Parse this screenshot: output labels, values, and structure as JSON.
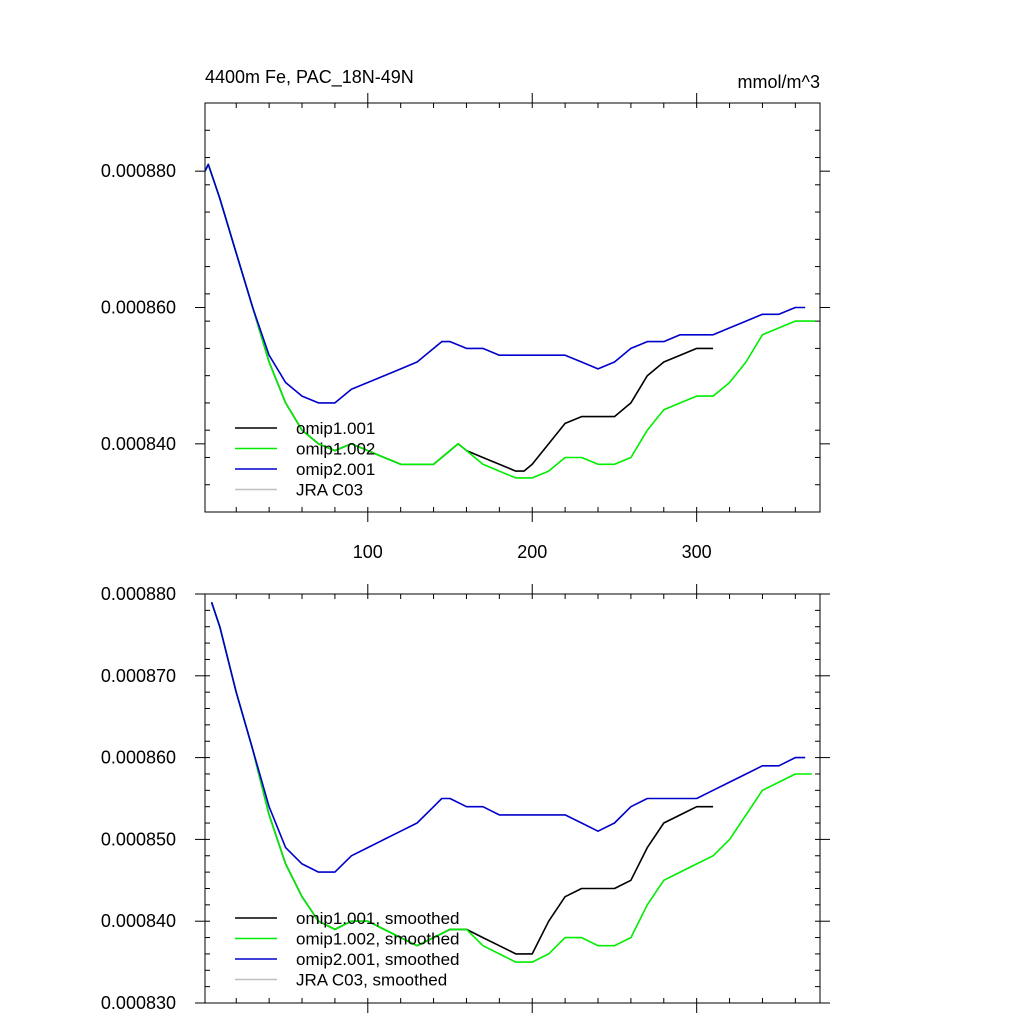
{
  "chart_data": [
    {
      "type": "line",
      "title": "4400m Fe, PAC_18N-49N",
      "units_label": "mmol/m^3",
      "xlabel": "",
      "ylabel": "",
      "xlim": [
        1,
        375
      ],
      "ylim": [
        0.00083,
        0.00089
      ],
      "x_ticks": [
        100,
        200,
        300
      ],
      "x_tick_labels": [
        "100",
        "200",
        "300"
      ],
      "y_ticks": [
        0.00084,
        0.00086,
        0.00088
      ],
      "y_tick_labels": [
        "0.000840",
        "0.000860",
        "0.000880"
      ],
      "legend_position": "bottom-left",
      "series": [
        {
          "name": "omip1.001",
          "color": "#000000",
          "points": [
            [
              1,
              0.00088
            ],
            [
              3,
              0.000881
            ],
            [
              10,
              0.000876
            ],
            [
              20,
              0.000868
            ],
            [
              30,
              0.00086
            ],
            [
              40,
              0.000852
            ],
            [
              50,
              0.000846
            ],
            [
              60,
              0.000842
            ],
            [
              70,
              0.00084
            ],
            [
              80,
              0.000839
            ],
            [
              90,
              0.00084
            ],
            [
              100,
              0.000839
            ],
            [
              110,
              0.000838
            ],
            [
              120,
              0.000837
            ],
            [
              130,
              0.000837
            ],
            [
              140,
              0.000837
            ],
            [
              150,
              0.000839
            ],
            [
              155,
              0.00084
            ],
            [
              160,
              0.000839
            ],
            [
              170,
              0.000838
            ],
            [
              180,
              0.000837
            ],
            [
              190,
              0.000836
            ],
            [
              195,
              0.000836
            ],
            [
              200,
              0.000837
            ],
            [
              210,
              0.00084
            ],
            [
              220,
              0.000843
            ],
            [
              230,
              0.000844
            ],
            [
              240,
              0.000844
            ],
            [
              250,
              0.000844
            ],
            [
              260,
              0.000846
            ],
            [
              270,
              0.00085
            ],
            [
              280,
              0.000852
            ],
            [
              290,
              0.000853
            ],
            [
              300,
              0.000854
            ],
            [
              310,
              0.000854
            ]
          ]
        },
        {
          "name": "omip1.002",
          "color": "#00ee00",
          "points": [
            [
              1,
              0.00088
            ],
            [
              3,
              0.000881
            ],
            [
              10,
              0.000876
            ],
            [
              20,
              0.000868
            ],
            [
              30,
              0.00086
            ],
            [
              40,
              0.000852
            ],
            [
              50,
              0.000846
            ],
            [
              60,
              0.000842
            ],
            [
              70,
              0.00084
            ],
            [
              80,
              0.000839
            ],
            [
              90,
              0.00084
            ],
            [
              100,
              0.000839
            ],
            [
              110,
              0.000838
            ],
            [
              120,
              0.000837
            ],
            [
              130,
              0.000837
            ],
            [
              140,
              0.000837
            ],
            [
              150,
              0.000839
            ],
            [
              155,
              0.00084
            ],
            [
              160,
              0.000839
            ],
            [
              170,
              0.000837
            ],
            [
              180,
              0.000836
            ],
            [
              190,
              0.000835
            ],
            [
              200,
              0.000835
            ],
            [
              210,
              0.000836
            ],
            [
              220,
              0.000838
            ],
            [
              230,
              0.000838
            ],
            [
              240,
              0.000837
            ],
            [
              250,
              0.000837
            ],
            [
              260,
              0.000838
            ],
            [
              270,
              0.000842
            ],
            [
              280,
              0.000845
            ],
            [
              290,
              0.000846
            ],
            [
              300,
              0.000847
            ],
            [
              310,
              0.000847
            ],
            [
              320,
              0.000849
            ],
            [
              330,
              0.000852
            ],
            [
              340,
              0.000856
            ],
            [
              350,
              0.000857
            ],
            [
              360,
              0.000858
            ],
            [
              372,
              0.000858
            ]
          ]
        },
        {
          "name": "omip2.001",
          "color": "#0000cc",
          "points": [
            [
              1,
              0.00088
            ],
            [
              3,
              0.000881
            ],
            [
              10,
              0.000876
            ],
            [
              20,
              0.000868
            ],
            [
              30,
              0.00086
            ],
            [
              40,
              0.000853
            ],
            [
              50,
              0.000849
            ],
            [
              60,
              0.000847
            ],
            [
              70,
              0.000846
            ],
            [
              75,
              0.000846
            ],
            [
              80,
              0.000846
            ],
            [
              90,
              0.000848
            ],
            [
              100,
              0.000849
            ],
            [
              110,
              0.00085
            ],
            [
              120,
              0.000851
            ],
            [
              130,
              0.000852
            ],
            [
              140,
              0.000854
            ],
            [
              145,
              0.000855
            ],
            [
              150,
              0.000855
            ],
            [
              160,
              0.000854
            ],
            [
              170,
              0.000854
            ],
            [
              180,
              0.000853
            ],
            [
              190,
              0.000853
            ],
            [
              200,
              0.000853
            ],
            [
              210,
              0.000853
            ],
            [
              220,
              0.000853
            ],
            [
              230,
              0.000852
            ],
            [
              240,
              0.000851
            ],
            [
              250,
              0.000852
            ],
            [
              260,
              0.000854
            ],
            [
              270,
              0.000855
            ],
            [
              280,
              0.000855
            ],
            [
              290,
              0.000856
            ],
            [
              300,
              0.000856
            ],
            [
              310,
              0.000856
            ],
            [
              320,
              0.000857
            ],
            [
              330,
              0.000858
            ],
            [
              340,
              0.000859
            ],
            [
              350,
              0.000859
            ],
            [
              360,
              0.00086
            ],
            [
              366,
              0.00086
            ]
          ]
        },
        {
          "name": "JRA C03",
          "color": "#c0c0c0",
          "points": []
        }
      ]
    },
    {
      "type": "line",
      "title": "",
      "xlabel": "",
      "ylabel": "",
      "xlim": [
        1,
        375
      ],
      "ylim": [
        0.00083,
        0.00088
      ],
      "x_ticks": [
        100,
        200,
        300
      ],
      "x_tick_labels": [],
      "y_ticks": [
        0.00083,
        0.00084,
        0.00085,
        0.00086,
        0.00087,
        0.00088
      ],
      "y_tick_labels": [
        "0.000830",
        "0.000840",
        "0.000850",
        "0.000860",
        "0.000870",
        "0.000880"
      ],
      "legend_position": "bottom-left",
      "series": [
        {
          "name": "omip1.001, smoothed",
          "color": "#000000",
          "points": [
            [
              5,
              0.000879
            ],
            [
              10,
              0.000876
            ],
            [
              20,
              0.000868
            ],
            [
              30,
              0.000861
            ],
            [
              40,
              0.000853
            ],
            [
              50,
              0.000847
            ],
            [
              60,
              0.000843
            ],
            [
              70,
              0.00084
            ],
            [
              80,
              0.000839
            ],
            [
              90,
              0.00084
            ],
            [
              100,
              0.00084
            ],
            [
              110,
              0.000839
            ],
            [
              120,
              0.000838
            ],
            [
              130,
              0.000837
            ],
            [
              140,
              0.000838
            ],
            [
              150,
              0.000839
            ],
            [
              155,
              0.000839
            ],
            [
              160,
              0.000839
            ],
            [
              170,
              0.000838
            ],
            [
              180,
              0.000837
            ],
            [
              190,
              0.000836
            ],
            [
              195,
              0.000836
            ],
            [
              200,
              0.000836
            ],
            [
              210,
              0.00084
            ],
            [
              220,
              0.000843
            ],
            [
              230,
              0.000844
            ],
            [
              240,
              0.000844
            ],
            [
              250,
              0.000844
            ],
            [
              260,
              0.000845
            ],
            [
              270,
              0.000849
            ],
            [
              280,
              0.000852
            ],
            [
              290,
              0.000853
            ],
            [
              300,
              0.000854
            ],
            [
              310,
              0.000854
            ]
          ]
        },
        {
          "name": "omip1.002, smoothed",
          "color": "#00ee00",
          "points": [
            [
              5,
              0.000879
            ],
            [
              10,
              0.000876
            ],
            [
              20,
              0.000868
            ],
            [
              30,
              0.000861
            ],
            [
              40,
              0.000853
            ],
            [
              50,
              0.000847
            ],
            [
              60,
              0.000843
            ],
            [
              70,
              0.00084
            ],
            [
              80,
              0.000839
            ],
            [
              90,
              0.00084
            ],
            [
              100,
              0.00084
            ],
            [
              110,
              0.000839
            ],
            [
              120,
              0.000838
            ],
            [
              130,
              0.000837
            ],
            [
              140,
              0.000838
            ],
            [
              150,
              0.000839
            ],
            [
              155,
              0.000839
            ],
            [
              160,
              0.000839
            ],
            [
              170,
              0.000837
            ],
            [
              180,
              0.000836
            ],
            [
              190,
              0.000835
            ],
            [
              200,
              0.000835
            ],
            [
              210,
              0.000836
            ],
            [
              220,
              0.000838
            ],
            [
              230,
              0.000838
            ],
            [
              240,
              0.000837
            ],
            [
              250,
              0.000837
            ],
            [
              260,
              0.000838
            ],
            [
              270,
              0.000842
            ],
            [
              280,
              0.000845
            ],
            [
              290,
              0.000846
            ],
            [
              300,
              0.000847
            ],
            [
              310,
              0.000848
            ],
            [
              320,
              0.00085
            ],
            [
              330,
              0.000853
            ],
            [
              340,
              0.000856
            ],
            [
              350,
              0.000857
            ],
            [
              360,
              0.000858
            ],
            [
              370,
              0.000858
            ]
          ]
        },
        {
          "name": "omip2.001, smoothed",
          "color": "#0000cc",
          "points": [
            [
              5,
              0.000879
            ],
            [
              10,
              0.000876
            ],
            [
              20,
              0.000868
            ],
            [
              30,
              0.000861
            ],
            [
              40,
              0.000854
            ],
            [
              50,
              0.000849
            ],
            [
              60,
              0.000847
            ],
            [
              70,
              0.000846
            ],
            [
              75,
              0.000846
            ],
            [
              80,
              0.000846
            ],
            [
              90,
              0.000848
            ],
            [
              100,
              0.000849
            ],
            [
              110,
              0.00085
            ],
            [
              120,
              0.000851
            ],
            [
              130,
              0.000852
            ],
            [
              140,
              0.000854
            ],
            [
              145,
              0.000855
            ],
            [
              150,
              0.000855
            ],
            [
              160,
              0.000854
            ],
            [
              170,
              0.000854
            ],
            [
              180,
              0.000853
            ],
            [
              190,
              0.000853
            ],
            [
              200,
              0.000853
            ],
            [
              210,
              0.000853
            ],
            [
              220,
              0.000853
            ],
            [
              230,
              0.000852
            ],
            [
              240,
              0.000851
            ],
            [
              250,
              0.000852
            ],
            [
              260,
              0.000854
            ],
            [
              270,
              0.000855
            ],
            [
              280,
              0.000855
            ],
            [
              290,
              0.000855
            ],
            [
              300,
              0.000855
            ],
            [
              310,
              0.000856
            ],
            [
              320,
              0.000857
            ],
            [
              330,
              0.000858
            ],
            [
              340,
              0.000859
            ],
            [
              350,
              0.000859
            ],
            [
              360,
              0.00086
            ],
            [
              366,
              0.00086
            ]
          ]
        },
        {
          "name": "JRA C03, smoothed",
          "color": "#c0c0c0",
          "points": []
        }
      ]
    }
  ]
}
